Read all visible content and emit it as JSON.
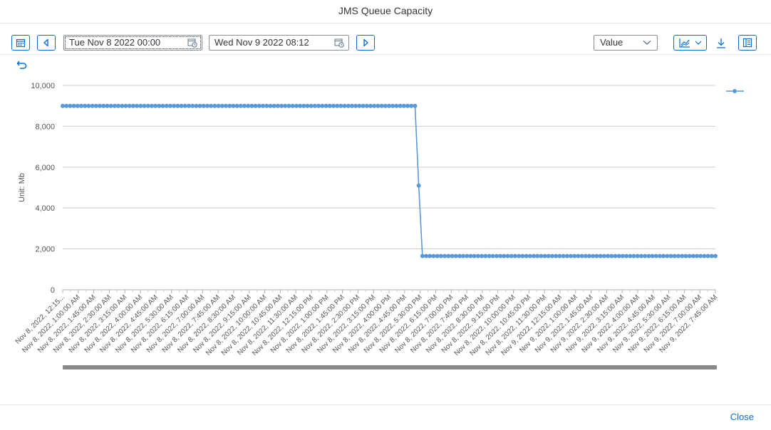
{
  "dialog": {
    "title": "JMS Queue Capacity",
    "close_label": "Close"
  },
  "toolbar": {
    "start_date": "Tue Nov 8 2022 00:00",
    "end_date": "Wed Nov 9 2022 08:12",
    "view_select": "Value",
    "icons": {
      "calendar": "calendar-icon",
      "prev": "arrow-left-icon",
      "next": "arrow-right-icon",
      "chart_type": "line-chart-icon",
      "download": "download-icon",
      "legend_toggle": "legend-icon",
      "undo": "undo-icon"
    }
  },
  "colors": {
    "accent": "#0a6ed1",
    "series": "#5899da",
    "grid": "#cccccc",
    "scrollbar": "#8a8a8a"
  },
  "chart_data": {
    "type": "line",
    "title": "",
    "xlabel": "",
    "ylabel": "Unit: Mb",
    "ylim": [
      0,
      10000
    ],
    "yticks": [
      0,
      2000,
      4000,
      6000,
      8000,
      10000
    ],
    "ytick_labels": [
      "0",
      "2,000",
      "4,000",
      "6,000",
      "8,000",
      "10,000"
    ],
    "grid": true,
    "legend": "top-right",
    "x_labels": [
      "Nov 8, 2022, 12:15...",
      "Nov 8, 2022, 1:00:00 AM",
      "Nov 8, 2022, 1:45:00 AM",
      "Nov 8, 2022, 2:30:00 AM",
      "Nov 8, 2022, 3:15:00 AM",
      "Nov 8, 2022, 4:00:00 AM",
      "Nov 8, 2022, 4:45:00 AM",
      "Nov 8, 2022, 5:30:00 AM",
      "Nov 8, 2022, 6:15:00 AM",
      "Nov 8, 2022, 7:00:00 AM",
      "Nov 8, 2022, 7:45:00 AM",
      "Nov 8, 2022, 8:30:00 AM",
      "Nov 8, 2022, 9:15:00 AM",
      "Nov 8, 2022, 10:00:00 AM",
      "Nov 8, 2022, 10:45:00 AM",
      "Nov 8, 2022, 11:30:00 AM",
      "Nov 8, 2022, 12:15:00 PM",
      "Nov 8, 2022, 1:00:00 PM",
      "Nov 8, 2022, 1:45:00 PM",
      "Nov 8, 2022, 2:30:00 PM",
      "Nov 8, 2022, 3:15:00 PM",
      "Nov 8, 2022, 4:00:00 PM",
      "Nov 8, 2022, 4:45:00 PM",
      "Nov 8, 2022, 5:30:00 PM",
      "Nov 8, 2022, 6:15:00 PM",
      "Nov 8, 2022, 7:00:00 PM",
      "Nov 8, 2022, 7:45:00 PM",
      "Nov 8, 2022, 8:30:00 PM",
      "Nov 8, 2022, 9:15:00 PM",
      "Nov 8, 2022, 10:00:00 PM",
      "Nov 8, 2022, 10:45:00 PM",
      "Nov 8, 2022, 11:30:00 PM",
      "Nov 9, 2022, 12:15:00 AM",
      "Nov 9, 2022, 1:00:00 AM",
      "Nov 9, 2022, 1:45:00 AM",
      "Nov 9, 2022, 2:30:00 AM",
      "Nov 9, 2022, 3:15:00 AM",
      "Nov 9, 2022, 4:00:00 AM",
      "Nov 9, 2022, 4:45:00 AM",
      "Nov 9, 2022, 5:30:00 AM",
      "Nov 9, 2022, 6:15:00 AM",
      "Nov 9, 2022, 7:00:00 AM",
      "Nov 9, 2022, 7:45:00 AM"
    ],
    "series": [
      {
        "name": "",
        "values": [
          9000,
          9000,
          9000,
          9000,
          9000,
          9000,
          9000,
          9000,
          9000,
          9000,
          9000,
          9000,
          9000,
          9000,
          9000,
          9000,
          9000,
          9000,
          9000,
          9000,
          9000,
          9000,
          9000,
          9000,
          9000,
          9000,
          9000,
          9000,
          9000,
          9000,
          9000,
          9000,
          9000,
          9000,
          9000,
          9000,
          9000,
          9000,
          9000,
          9000,
          9000,
          9000,
          9000,
          9000,
          9000,
          9000,
          9000,
          9000,
          9000,
          9000,
          9000,
          9000,
          9000,
          9000,
          9000,
          9000,
          9000,
          9000,
          9000,
          9000,
          9000,
          9000,
          9000,
          9000,
          9000,
          9000,
          9000,
          9000,
          9000,
          9000,
          9000,
          9000,
          9000,
          9000,
          9000,
          9000,
          9000,
          9000,
          9000,
          9000,
          9000,
          9000,
          9000,
          9000,
          9000,
          9000,
          9000,
          9000,
          9000,
          9000,
          9000,
          9000,
          9000,
          9000,
          9000,
          9000,
          5100,
          1650,
          1650,
          1650,
          1650,
          1650,
          1650,
          1650,
          1650,
          1650,
          1650,
          1650,
          1650,
          1650,
          1650,
          1650,
          1650,
          1650,
          1650,
          1650,
          1650,
          1650,
          1650,
          1650,
          1650,
          1650,
          1650,
          1650,
          1650,
          1650,
          1650,
          1650,
          1650,
          1650,
          1650,
          1650,
          1650,
          1650,
          1650,
          1650,
          1650,
          1650,
          1650,
          1650,
          1650,
          1650,
          1650,
          1650,
          1650,
          1650,
          1650,
          1650,
          1650,
          1650,
          1650,
          1650,
          1650,
          1650,
          1650,
          1650,
          1650,
          1650,
          1650,
          1650,
          1650,
          1650,
          1650,
          1650,
          1650,
          1650,
          1650,
          1650,
          1650,
          1650,
          1650,
          1650,
          1650,
          1650,
          1650,
          1650,
          1650
        ]
      }
    ]
  }
}
